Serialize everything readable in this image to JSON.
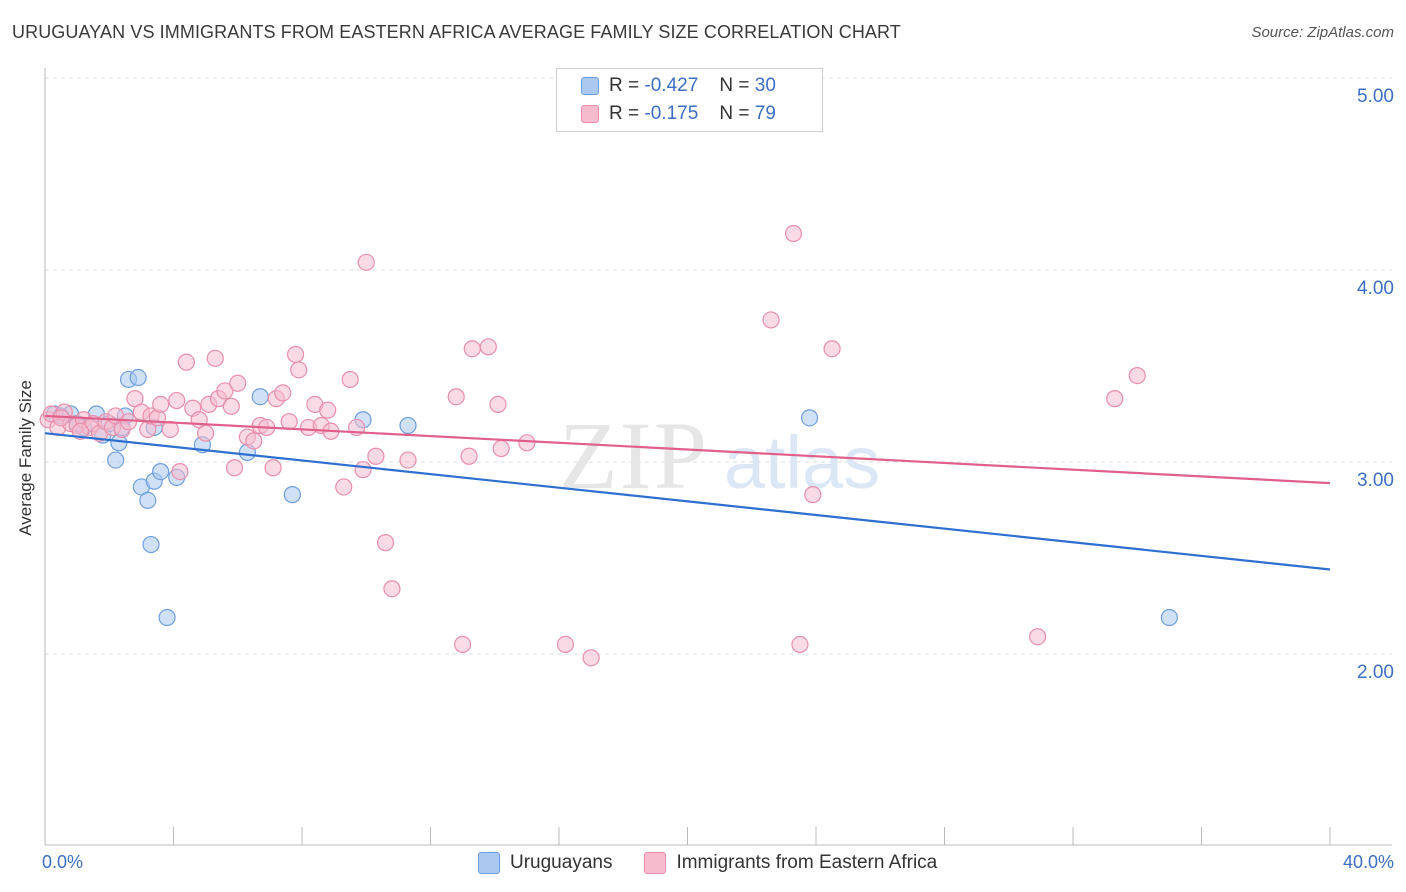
{
  "header": {
    "title": "URUGUAYAN VS IMMIGRANTS FROM EASTERN AFRICA AVERAGE FAMILY SIZE CORRELATION CHART",
    "source": "Source: ZipAtlas.com"
  },
  "watermark": {
    "zip": "ZIP",
    "atlas": "atlas"
  },
  "colors": {
    "blue_fill": "#aac8f0",
    "blue_stroke": "#6f9fe0",
    "blue_line": "#2e6fd0",
    "pink_fill": "#f6bccd",
    "pink_stroke": "#e98fab",
    "pink_line": "#e0608a",
    "tick_text": "#3d6fc6",
    "grid": "#dcdcdc"
  },
  "legend": {
    "rows": [
      {
        "r_label": "R =",
        "r_value": "-0.427",
        "n_label": "N =",
        "n_value": "30"
      },
      {
        "r_label": "R =",
        "r_value": "-0.175",
        "n_label": "N =",
        "n_value": "79"
      }
    ]
  },
  "chart_data": {
    "type": "scatter",
    "xlabel": "",
    "ylabel": "Average Family Size",
    "xlim": [
      0,
      40
    ],
    "ylim": [
      1.2,
      5.1
    ],
    "x_tick_labels": [
      "0.0%",
      "40.0%"
    ],
    "y_ticks": [
      2.0,
      3.0,
      4.0,
      5.0
    ],
    "y_tick_labels": [
      "2.00",
      "3.00",
      "4.00",
      "5.00"
    ],
    "grid": "horizontal dashed",
    "legend_position": "top-center",
    "series": [
      {
        "name": "Uruguayans",
        "color_key": "blue",
        "trend": {
          "x": [
            0,
            40
          ],
          "y": [
            3.15,
            2.44
          ]
        },
        "points": [
          [
            0.3,
            3.25
          ],
          [
            0.5,
            3.24
          ],
          [
            0.8,
            3.25
          ],
          [
            1.0,
            3.2
          ],
          [
            1.2,
            3.18
          ],
          [
            1.6,
            3.25
          ],
          [
            1.8,
            3.14
          ],
          [
            2.0,
            3.2
          ],
          [
            2.2,
            3.01
          ],
          [
            2.3,
            3.1
          ],
          [
            2.4,
            3.18
          ],
          [
            2.5,
            3.24
          ],
          [
            2.6,
            3.43
          ],
          [
            2.9,
            3.44
          ],
          [
            3.0,
            2.87
          ],
          [
            3.2,
            2.8
          ],
          [
            3.4,
            3.18
          ],
          [
            3.3,
            2.57
          ],
          [
            3.4,
            2.9
          ],
          [
            3.6,
            2.95
          ],
          [
            3.8,
            2.19
          ],
          [
            4.1,
            2.92
          ],
          [
            4.9,
            3.09
          ],
          [
            6.3,
            3.05
          ],
          [
            6.7,
            3.34
          ],
          [
            7.7,
            2.83
          ],
          [
            9.9,
            3.22
          ],
          [
            11.3,
            3.19
          ],
          [
            23.8,
            3.23
          ],
          [
            35.0,
            2.19
          ]
        ]
      },
      {
        "name": "Immigrants from Eastern Africa",
        "color_key": "pink",
        "trend": {
          "x": [
            0,
            40
          ],
          "y": [
            3.24,
            2.89
          ]
        },
        "points": [
          [
            0.1,
            3.22
          ],
          [
            0.2,
            3.25
          ],
          [
            0.4,
            3.18
          ],
          [
            0.6,
            3.26
          ],
          [
            0.8,
            3.2
          ],
          [
            1.0,
            3.19
          ],
          [
            1.2,
            3.22
          ],
          [
            1.4,
            3.18
          ],
          [
            1.5,
            3.2
          ],
          [
            1.7,
            3.15
          ],
          [
            1.9,
            3.21
          ],
          [
            2.1,
            3.18
          ],
          [
            2.2,
            3.24
          ],
          [
            2.4,
            3.17
          ],
          [
            2.6,
            3.21
          ],
          [
            2.8,
            3.33
          ],
          [
            3.0,
            3.26
          ],
          [
            3.2,
            3.17
          ],
          [
            3.3,
            3.24
          ],
          [
            3.5,
            3.23
          ],
          [
            3.6,
            3.3
          ],
          [
            3.9,
            3.17
          ],
          [
            4.1,
            3.32
          ],
          [
            4.2,
            2.95
          ],
          [
            4.4,
            3.52
          ],
          [
            4.6,
            3.28
          ],
          [
            4.8,
            3.22
          ],
          [
            5.0,
            3.15
          ],
          [
            5.1,
            3.3
          ],
          [
            5.3,
            3.54
          ],
          [
            5.4,
            3.33
          ],
          [
            5.6,
            3.37
          ],
          [
            5.8,
            3.29
          ],
          [
            5.9,
            2.97
          ],
          [
            6.0,
            3.41
          ],
          [
            6.3,
            3.13
          ],
          [
            6.5,
            3.11
          ],
          [
            6.7,
            3.19
          ],
          [
            6.9,
            3.18
          ],
          [
            7.1,
            2.97
          ],
          [
            7.2,
            3.33
          ],
          [
            7.4,
            3.36
          ],
          [
            7.6,
            3.21
          ],
          [
            7.8,
            3.56
          ],
          [
            7.9,
            3.48
          ],
          [
            8.2,
            3.18
          ],
          [
            8.4,
            3.3
          ],
          [
            8.6,
            3.19
          ],
          [
            8.8,
            3.27
          ],
          [
            8.9,
            3.16
          ],
          [
            9.3,
            2.87
          ],
          [
            9.5,
            3.43
          ],
          [
            9.7,
            3.18
          ],
          [
            9.9,
            2.96
          ],
          [
            10.0,
            4.04
          ],
          [
            10.3,
            3.03
          ],
          [
            10.6,
            2.58
          ],
          [
            10.8,
            2.34
          ],
          [
            11.3,
            3.01
          ],
          [
            12.8,
            3.34
          ],
          [
            13.0,
            2.05
          ],
          [
            13.2,
            3.03
          ],
          [
            13.3,
            3.59
          ],
          [
            13.8,
            3.6
          ],
          [
            14.1,
            3.3
          ],
          [
            14.2,
            3.07
          ],
          [
            15.0,
            3.1
          ],
          [
            16.2,
            2.05
          ],
          [
            17.0,
            1.98
          ],
          [
            22.6,
            3.74
          ],
          [
            23.3,
            4.19
          ],
          [
            23.5,
            2.05
          ],
          [
            23.9,
            2.83
          ],
          [
            24.5,
            3.59
          ],
          [
            30.9,
            2.09
          ],
          [
            33.3,
            3.33
          ],
          [
            34.0,
            3.45
          ],
          [
            0.5,
            3.23
          ],
          [
            1.1,
            3.16
          ]
        ]
      }
    ]
  }
}
